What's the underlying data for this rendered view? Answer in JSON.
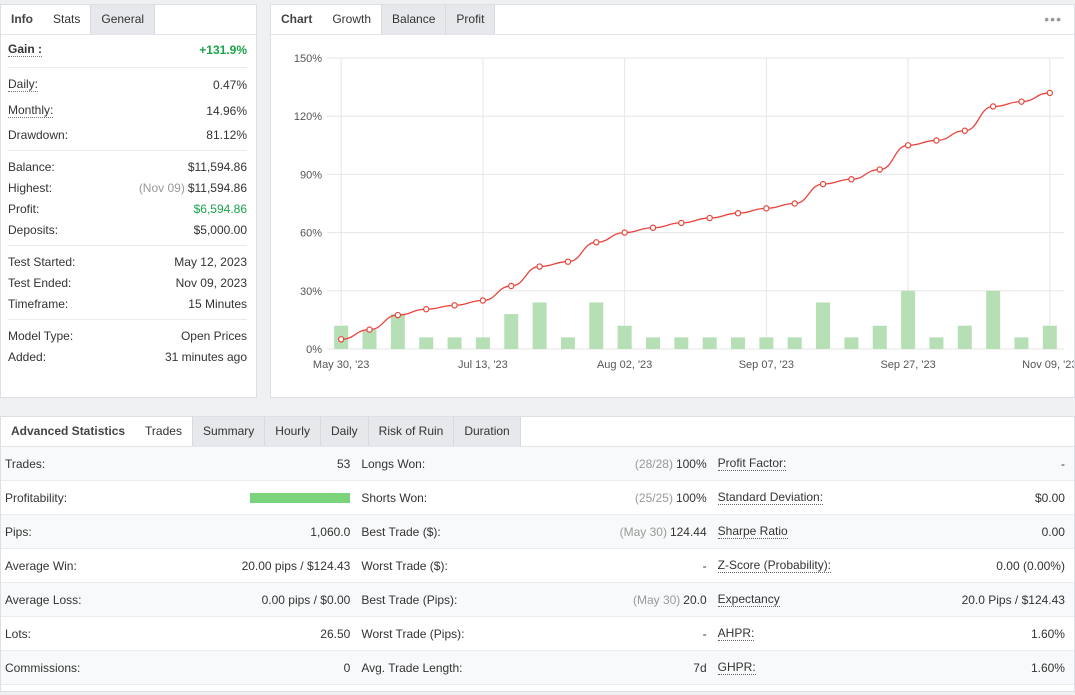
{
  "info": {
    "tabs": [
      "Info",
      "Stats",
      "General"
    ],
    "gain": {
      "label": "Gain :",
      "value": "+131.9%"
    },
    "daily": {
      "label": "Daily:",
      "value": "0.47%"
    },
    "monthly": {
      "label": "Monthly:",
      "value": "14.96%"
    },
    "drawdown": {
      "label": "Drawdown:",
      "value": "81.12%"
    },
    "balance": {
      "label": "Balance:",
      "value": "$11,594.86"
    },
    "highest": {
      "label": "Highest:",
      "date": "(Nov 09)",
      "value": "$11,594.86"
    },
    "profit": {
      "label": "Profit:",
      "value": "$6,594.86"
    },
    "deposits": {
      "label": "Deposits:",
      "value": "$5,000.00"
    },
    "test_started": {
      "label": "Test Started:",
      "value": "May 12, 2023"
    },
    "test_ended": {
      "label": "Test Ended:",
      "value": "Nov 09, 2023"
    },
    "timeframe": {
      "label": "Timeframe:",
      "value": "15 Minutes"
    },
    "model_type": {
      "label": "Model Type:",
      "value": "Open Prices"
    },
    "added": {
      "label": "Added:",
      "value": "31 minutes ago"
    }
  },
  "chart_panel": {
    "tabs": [
      "Chart",
      "Growth",
      "Balance",
      "Profit"
    ],
    "more": "•••"
  },
  "chart_data": {
    "type": "line",
    "title": "",
    "xlabel": "",
    "ylabel": "",
    "ylim": [
      0,
      150
    ],
    "yticks": [
      "0%",
      "30%",
      "60%",
      "90%",
      "120%",
      "150%"
    ],
    "xticks": [
      "May 30, '23",
      "Jul 13, '23",
      "Aug 02, '23",
      "Sep 07, '23",
      "Sep 27, '23",
      "Nov 09, '23"
    ],
    "grid": true,
    "series": [
      {
        "values": [
          5,
          10,
          17.5,
          20.5,
          22.5,
          25,
          32.5,
          42.5,
          45,
          55,
          60,
          62.5,
          65,
          67.5,
          70,
          72.5,
          75,
          85,
          87.5,
          92.5,
          105,
          107.5,
          112.5,
          125,
          127.5,
          132
        ],
        "color": "#e8453c"
      },
      {
        "type": "bar",
        "values": [
          12,
          10,
          18,
          6,
          6,
          6,
          18,
          24,
          6,
          24,
          12,
          6,
          6,
          6,
          6,
          6,
          6,
          24,
          6,
          12,
          30,
          6,
          12,
          30,
          6,
          12
        ],
        "color": "#b6dfb6"
      }
    ]
  },
  "stats": {
    "tabs": [
      "Advanced Statistics",
      "Trades",
      "Summary",
      "Hourly",
      "Daily",
      "Risk of Ruin",
      "Duration"
    ],
    "rows": [
      {
        "l1": "Trades:",
        "v1": "53",
        "l2": "Longs Won:",
        "m2": "(28/28)",
        "v2": "100%",
        "l3": "Profit Factor:",
        "v3": "-"
      },
      {
        "l1": "Profitability:",
        "v1": "",
        "l2": "Shorts Won:",
        "m2": "(25/25)",
        "v2": "100%",
        "l3": "Standard Deviation:",
        "v3": "$0.00"
      },
      {
        "l1": "Pips:",
        "v1": "1,060.0",
        "l2": "Best Trade ($):",
        "m2": "(May 30)",
        "v2": "124.44",
        "l3": "Sharpe Ratio",
        "v3": "0.00"
      },
      {
        "l1": "Average Win:",
        "v1": "20.00 pips / $124.43",
        "l2": "Worst Trade ($):",
        "m2": "",
        "v2": "-",
        "l3": "Z-Score (Probability):",
        "v3": "0.00 (0.00%)"
      },
      {
        "l1": "Average Loss:",
        "v1": "0.00 pips / $0.00",
        "l2": "Best Trade (Pips):",
        "m2": "(May 30)",
        "v2": "20.0",
        "l3": "Expectancy",
        "v3": "20.0 Pips / $124.43"
      },
      {
        "l1": "Lots:",
        "v1": "26.50",
        "l2": "Worst Trade (Pips):",
        "m2": "",
        "v2": "-",
        "l3": "AHPR:",
        "v3": "1.60%"
      },
      {
        "l1": "Commissions:",
        "v1": "0",
        "l2": "Avg. Trade Length:",
        "m2": "",
        "v2": "7d",
        "l3": "GHPR:",
        "v3": "1.60%"
      }
    ],
    "profitability": 1.0
  },
  "colors": {
    "positive": "#1aa34a",
    "line": "#e8453c",
    "bar": "#b6dfb6",
    "profitability_bar": "#7bd37b"
  }
}
